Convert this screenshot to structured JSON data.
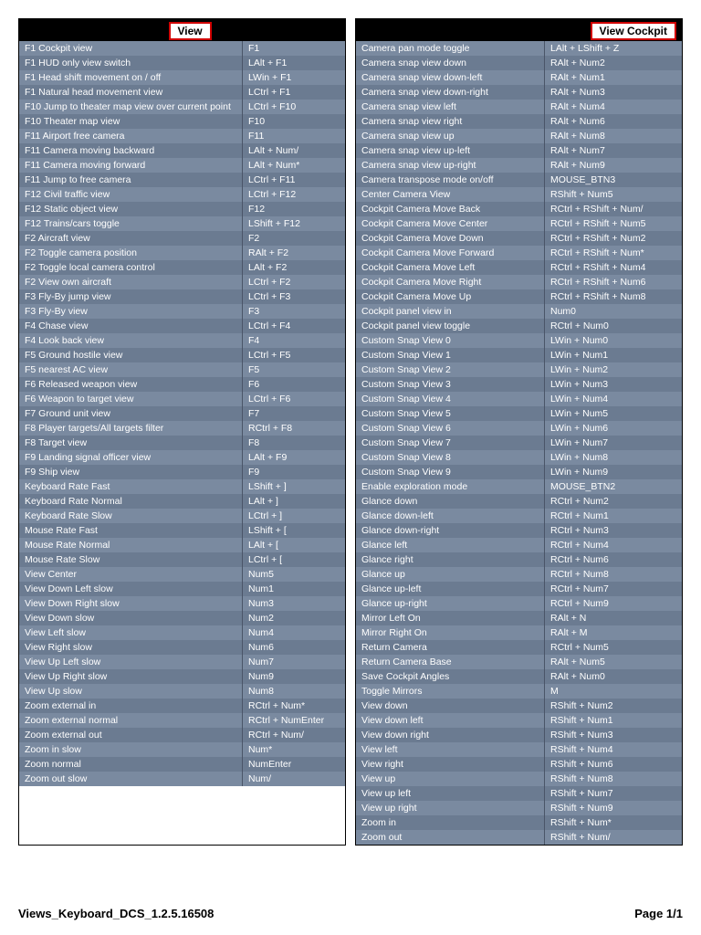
{
  "leftTitle": "View",
  "rightTitle": "View Cockpit",
  "footerLeft": "Views_Keyboard_DCS_1.2.5.16508",
  "footerRight": "Page 1/1",
  "leftRows": [
    {
      "a": "F1 Cockpit view",
      "k": "F1"
    },
    {
      "a": "F1 HUD only view switch",
      "k": "LAlt + F1"
    },
    {
      "a": "F1 Head shift movement on / off",
      "k": "LWin + F1"
    },
    {
      "a": "F1 Natural head movement view",
      "k": "LCtrl + F1"
    },
    {
      "a": "F10 Jump to theater map view over current point",
      "k": "LCtrl + F10"
    },
    {
      "a": "F10 Theater map view",
      "k": "F10"
    },
    {
      "a": "F11 Airport free camera",
      "k": "F11"
    },
    {
      "a": "F11 Camera moving backward",
      "k": "LAlt + Num/"
    },
    {
      "a": "F11 Camera moving forward",
      "k": "LAlt + Num*"
    },
    {
      "a": "F11 Jump to free camera",
      "k": "LCtrl + F11"
    },
    {
      "a": "F12 Civil traffic view",
      "k": "LCtrl + F12"
    },
    {
      "a": "F12 Static object view",
      "k": "F12"
    },
    {
      "a": "F12 Trains/cars toggle",
      "k": "LShift + F12"
    },
    {
      "a": "F2 Aircraft view",
      "k": "F2"
    },
    {
      "a": "F2 Toggle camera position",
      "k": "RAlt + F2"
    },
    {
      "a": "F2 Toggle local camera control",
      "k": "LAlt + F2"
    },
    {
      "a": "F2 View own aircraft",
      "k": "LCtrl + F2"
    },
    {
      "a": "F3 Fly-By jump view",
      "k": "LCtrl + F3"
    },
    {
      "a": "F3 Fly-By view",
      "k": "F3"
    },
    {
      "a": "F4 Chase view",
      "k": "LCtrl + F4"
    },
    {
      "a": "F4 Look back view",
      "k": "F4"
    },
    {
      "a": "F5 Ground hostile view",
      "k": "LCtrl + F5"
    },
    {
      "a": "F5 nearest AC view",
      "k": "F5"
    },
    {
      "a": "F6 Released weapon view",
      "k": "F6"
    },
    {
      "a": "F6 Weapon to target view",
      "k": "LCtrl + F6"
    },
    {
      "a": "F7 Ground unit view",
      "k": "F7"
    },
    {
      "a": "F8 Player targets/All targets filter",
      "k": "RCtrl + F8"
    },
    {
      "a": "F8 Target view",
      "k": "F8"
    },
    {
      "a": "F9 Landing signal officer view",
      "k": "LAlt + F9"
    },
    {
      "a": "F9 Ship view",
      "k": "F9"
    },
    {
      "a": "Keyboard Rate Fast",
      "k": "LShift + ]"
    },
    {
      "a": "Keyboard Rate Normal",
      "k": "LAlt + ]"
    },
    {
      "a": "Keyboard Rate Slow",
      "k": "LCtrl + ]"
    },
    {
      "a": "Mouse Rate Fast",
      "k": "LShift + ["
    },
    {
      "a": "Mouse Rate Normal",
      "k": "LAlt + ["
    },
    {
      "a": "Mouse Rate Slow",
      "k": "LCtrl + ["
    },
    {
      "a": "View Center",
      "k": "Num5"
    },
    {
      "a": "View Down Left slow",
      "k": "Num1"
    },
    {
      "a": "View Down Right slow",
      "k": "Num3"
    },
    {
      "a": "View Down slow",
      "k": "Num2"
    },
    {
      "a": "View Left slow",
      "k": "Num4"
    },
    {
      "a": "View Right slow",
      "k": "Num6"
    },
    {
      "a": "View Up Left slow",
      "k": "Num7"
    },
    {
      "a": "View Up Right slow",
      "k": "Num9"
    },
    {
      "a": "View Up slow",
      "k": "Num8"
    },
    {
      "a": "Zoom external in",
      "k": "RCtrl + Num*"
    },
    {
      "a": "Zoom external normal",
      "k": "RCtrl + NumEnter"
    },
    {
      "a": "Zoom external out",
      "k": "RCtrl + Num/"
    },
    {
      "a": "Zoom in slow",
      "k": "Num*"
    },
    {
      "a": "Zoom normal",
      "k": "NumEnter"
    },
    {
      "a": "Zoom out slow",
      "k": "Num/"
    }
  ],
  "rightRows": [
    {
      "a": "Camera pan mode toggle",
      "k": "LAlt + LShift + Z"
    },
    {
      "a": "Camera snap view down",
      "k": "RAlt + Num2"
    },
    {
      "a": "Camera snap view down-left",
      "k": "RAlt + Num1"
    },
    {
      "a": "Camera snap view down-right",
      "k": "RAlt + Num3"
    },
    {
      "a": "Camera snap view left",
      "k": "RAlt + Num4"
    },
    {
      "a": "Camera snap view right",
      "k": "RAlt + Num6"
    },
    {
      "a": "Camera snap view up",
      "k": "RAlt + Num8"
    },
    {
      "a": "Camera snap view up-left",
      "k": "RAlt + Num7"
    },
    {
      "a": "Camera snap view up-right",
      "k": "RAlt + Num9"
    },
    {
      "a": "Camera transpose mode on/off",
      "k": "MOUSE_BTN3"
    },
    {
      "a": "Center Camera View",
      "k": "RShift + Num5"
    },
    {
      "a": "Cockpit Camera Move Back",
      "k": "RCtrl + RShift + Num/"
    },
    {
      "a": "Cockpit Camera Move Center",
      "k": "RCtrl + RShift + Num5"
    },
    {
      "a": "Cockpit Camera Move Down",
      "k": "RCtrl + RShift + Num2"
    },
    {
      "a": "Cockpit Camera Move Forward",
      "k": "RCtrl + RShift + Num*"
    },
    {
      "a": "Cockpit Camera Move Left",
      "k": "RCtrl + RShift + Num4"
    },
    {
      "a": "Cockpit Camera Move Right",
      "k": "RCtrl + RShift + Num6"
    },
    {
      "a": "Cockpit Camera Move Up",
      "k": "RCtrl + RShift + Num8"
    },
    {
      "a": "Cockpit panel view in",
      "k": "Num0"
    },
    {
      "a": "Cockpit panel view toggle",
      "k": "RCtrl + Num0"
    },
    {
      "a": "Custom Snap View  0",
      "k": "LWin + Num0"
    },
    {
      "a": "Custom Snap View  1",
      "k": "LWin + Num1"
    },
    {
      "a": "Custom Snap View  2",
      "k": "LWin + Num2"
    },
    {
      "a": "Custom Snap View  3",
      "k": "LWin + Num3"
    },
    {
      "a": "Custom Snap View  4",
      "k": "LWin + Num4"
    },
    {
      "a": "Custom Snap View  5",
      "k": "LWin + Num5"
    },
    {
      "a": "Custom Snap View  6",
      "k": "LWin + Num6"
    },
    {
      "a": "Custom Snap View  7",
      "k": "LWin + Num7"
    },
    {
      "a": "Custom Snap View  8",
      "k": "LWin + Num8"
    },
    {
      "a": "Custom Snap View  9",
      "k": "LWin + Num9"
    },
    {
      "a": "Enable exploration mode",
      "k": "MOUSE_BTN2"
    },
    {
      "a": "Glance down",
      "k": "RCtrl + Num2"
    },
    {
      "a": "Glance down-left",
      "k": "RCtrl + Num1"
    },
    {
      "a": "Glance down-right",
      "k": "RCtrl + Num3"
    },
    {
      "a": "Glance left",
      "k": "RCtrl + Num4"
    },
    {
      "a": "Glance right",
      "k": "RCtrl + Num6"
    },
    {
      "a": "Glance up",
      "k": "RCtrl + Num8"
    },
    {
      "a": "Glance up-left",
      "k": "RCtrl + Num7"
    },
    {
      "a": "Glance up-right",
      "k": "RCtrl + Num9"
    },
    {
      "a": "Mirror Left On",
      "k": "RAlt + N"
    },
    {
      "a": "Mirror Right On",
      "k": "RAlt + M"
    },
    {
      "a": "Return Camera",
      "k": "RCtrl + Num5"
    },
    {
      "a": "Return Camera Base",
      "k": "RAlt + Num5"
    },
    {
      "a": "Save Cockpit Angles",
      "k": "RAlt + Num0"
    },
    {
      "a": "Toggle Mirrors",
      "k": "M"
    },
    {
      "a": "View down",
      "k": "RShift + Num2"
    },
    {
      "a": "View down left",
      "k": "RShift + Num1"
    },
    {
      "a": "View down right",
      "k": "RShift + Num3"
    },
    {
      "a": "View left",
      "k": "RShift + Num4"
    },
    {
      "a": "View right",
      "k": "RShift + Num6"
    },
    {
      "a": "View up",
      "k": "RShift + Num8"
    },
    {
      "a": "View up left",
      "k": "RShift + Num7"
    },
    {
      "a": "View up right",
      "k": "RShift + Num9"
    },
    {
      "a": "Zoom in",
      "k": "RShift + Num*"
    },
    {
      "a": "Zoom out",
      "k": "RShift + Num/"
    }
  ]
}
